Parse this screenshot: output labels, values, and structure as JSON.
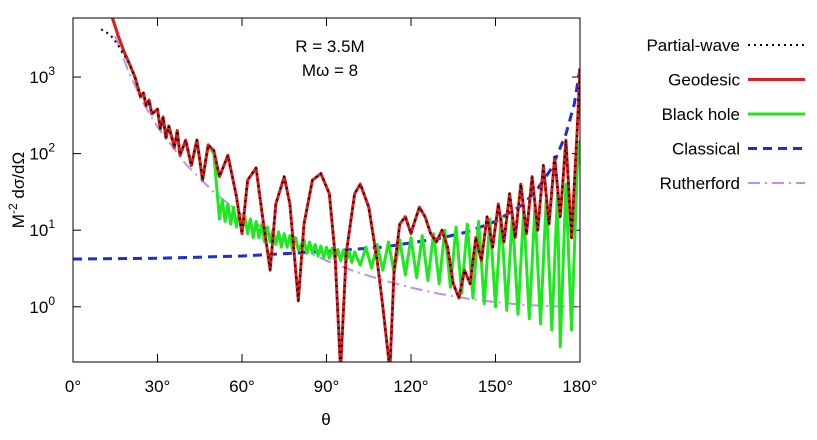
{
  "chart_data": {
    "type": "line",
    "annotations": [
      "R = 3.5M",
      "Mω = 8"
    ],
    "xlabel": "θ",
    "ylabel": {
      "text": "M",
      "sup": "-2",
      "rest": " dσ/dΩ"
    },
    "xlim": [
      0,
      180
    ],
    "ylim": [
      0.19,
      5900
    ],
    "yscale": "log",
    "xticks": [
      {
        "value": 0,
        "label": "0°"
      },
      {
        "value": 30,
        "label": "30°"
      },
      {
        "value": 60,
        "label": "60°"
      },
      {
        "value": 90,
        "label": "90°"
      },
      {
        "value": 120,
        "label": "120°"
      },
      {
        "value": 150,
        "label": "150°"
      },
      {
        "value": 180,
        "label": "180°"
      }
    ],
    "yticks": [
      {
        "value": 1,
        "label": "10",
        "sup": "0"
      },
      {
        "value": 10,
        "label": "10",
        "sup": "1"
      },
      {
        "value": 100,
        "label": "10",
        "sup": "2"
      },
      {
        "value": 1000,
        "label": "10",
        "sup": "3"
      }
    ],
    "legend": "outside right",
    "series": [
      {
        "name": "Partial-wave",
        "color": "#000000",
        "dash": "2,4",
        "width": 2,
        "x": [
          10,
          12,
          14,
          16,
          18,
          20,
          22,
          24,
          25,
          26,
          27,
          28,
          30,
          31,
          32,
          33,
          34,
          36,
          37,
          38,
          40,
          42,
          44,
          46,
          48,
          50,
          52,
          55,
          58,
          60,
          62,
          65,
          67,
          70,
          72,
          75,
          77,
          80,
          82,
          85,
          88,
          91,
          93,
          95,
          97,
          100,
          102,
          105,
          108,
          110,
          112.5,
          114,
          116,
          118,
          120,
          121,
          123,
          125,
          127,
          129,
          131,
          133,
          135,
          137,
          139,
          141,
          143,
          145,
          147,
          149,
          151,
          153,
          155,
          157,
          159,
          161,
          163,
          165,
          167,
          169,
          171,
          173,
          175,
          177,
          179,
          180
        ],
        "values": [
          4200,
          3800,
          3300,
          2600,
          2000,
          1500,
          1000,
          550,
          620,
          420,
          500,
          330,
          380,
          210,
          300,
          160,
          230,
          120,
          200,
          95,
          150,
          70,
          150,
          45,
          130,
          110,
          50,
          95,
          28,
          9,
          45,
          65,
          18,
          3,
          22,
          50,
          22,
          1.2,
          12,
          45,
          55,
          30,
          5,
          0.15,
          5,
          30,
          40,
          20,
          4,
          1,
          0.15,
          3,
          12,
          15,
          9,
          12,
          20,
          15,
          9,
          7,
          10,
          6,
          2,
          1.3,
          3,
          2,
          8,
          4,
          15,
          6,
          22,
          7,
          30,
          8,
          40,
          9,
          50,
          10,
          70,
          12,
          90,
          15,
          150,
          8,
          200,
          1300
        ]
      },
      {
        "name": "Geodesic",
        "color": "#e41a1c",
        "dash": "none",
        "width": 3,
        "x": [
          14,
          16,
          18,
          20,
          22,
          24,
          25,
          26,
          27,
          28,
          30,
          31,
          32,
          33,
          34,
          36,
          37,
          38,
          40,
          42,
          44,
          46,
          48,
          50,
          52,
          55,
          58,
          60,
          62,
          65,
          67,
          70,
          72,
          75,
          77,
          80,
          82,
          85,
          88,
          91,
          93,
          95,
          97,
          100,
          102,
          105,
          108,
          110,
          112.5,
          114,
          116,
          118,
          120,
          121,
          123,
          125,
          127,
          129,
          131,
          133,
          135,
          137,
          139,
          141,
          143,
          145,
          147,
          149,
          151,
          153,
          155,
          157,
          159,
          161,
          163,
          165,
          167,
          169,
          171,
          173,
          175,
          177,
          179,
          180
        ],
        "values": [
          5900,
          3500,
          2200,
          1500,
          1000,
          550,
          620,
          420,
          500,
          330,
          380,
          210,
          300,
          160,
          230,
          120,
          200,
          95,
          150,
          70,
          150,
          45,
          130,
          110,
          50,
          95,
          28,
          9,
          45,
          65,
          18,
          3,
          22,
          50,
          22,
          1.2,
          12,
          45,
          55,
          30,
          5,
          0.15,
          5,
          30,
          40,
          20,
          4,
          1,
          0.15,
          3,
          12,
          15,
          9,
          12,
          20,
          15,
          9,
          7,
          10,
          6,
          2,
          1.3,
          3,
          2,
          8,
          4,
          15,
          6,
          22,
          7,
          30,
          8,
          40,
          9,
          50,
          10,
          70,
          12,
          90,
          15,
          150,
          8,
          200,
          1300
        ]
      },
      {
        "name": "Black hole",
        "color": "#1ee81e",
        "dash": "none",
        "width": 3,
        "x": [
          14,
          16,
          18,
          20,
          22,
          24,
          25,
          26,
          27,
          28,
          30,
          31,
          32,
          33,
          34,
          36,
          37,
          38,
          40,
          42,
          44,
          46,
          48,
          50,
          52,
          53,
          54,
          55,
          56,
          57,
          58,
          59,
          60,
          61,
          62,
          63,
          64,
          65,
          66,
          67,
          68,
          69,
          70,
          71,
          72,
          73,
          74,
          75,
          76,
          77,
          78,
          79,
          80,
          82,
          83,
          84,
          85,
          86,
          87,
          88,
          89,
          90,
          91,
          92,
          93,
          94,
          95,
          96,
          97,
          98,
          99,
          100,
          102,
          104,
          106,
          108,
          110,
          112,
          114,
          116,
          118,
          120,
          122,
          124,
          126,
          128,
          130,
          132,
          134,
          136,
          138,
          140,
          142,
          144,
          146,
          148,
          150,
          152,
          154,
          156,
          158,
          160,
          162,
          164,
          166,
          168,
          170,
          172,
          173,
          175,
          177,
          179,
          180
        ],
        "values": [
          5900,
          3500,
          2200,
          1500,
          1000,
          550,
          620,
          420,
          500,
          330,
          380,
          210,
          300,
          160,
          230,
          120,
          200,
          95,
          150,
          70,
          150,
          45,
          130,
          100,
          14,
          25,
          13,
          22,
          12,
          20,
          11,
          17,
          10,
          15,
          9,
          14,
          8,
          13,
          8,
          12,
          7,
          11,
          7,
          10,
          6.5,
          9.5,
          6,
          9,
          6,
          8.5,
          5.5,
          8,
          5.5,
          7.5,
          5,
          7,
          5,
          6.5,
          4.6,
          6.2,
          4.4,
          6,
          4.3,
          5.8,
          4.2,
          5.6,
          4,
          5.5,
          3.9,
          5.3,
          3.8,
          5.2,
          3.5,
          6,
          3.2,
          6.5,
          3,
          7,
          2.8,
          7.5,
          2.6,
          8,
          2.4,
          8.5,
          2.2,
          9,
          2,
          10,
          1.8,
          11,
          1.5,
          12,
          1.3,
          13,
          1.1,
          14,
          1,
          15,
          0.9,
          16,
          0.8,
          18,
          0.7,
          20,
          0.6,
          25,
          0.5,
          30,
          0.3,
          40,
          0.5,
          60,
          150
        ]
      },
      {
        "name": "Classical",
        "color": "#1a2ee0",
        "dash": "9,6",
        "width": 3,
        "x": [
          0,
          30,
          60,
          90,
          110,
          130,
          140,
          150,
          160,
          165,
          170,
          175,
          178,
          180
        ],
        "values": [
          4.2,
          4.3,
          4.6,
          5.3,
          6,
          7.8,
          9.5,
          13,
          22,
          35,
          65,
          180,
          450,
          1300
        ]
      },
      {
        "name": "Rutherford",
        "color": "#c28cf0",
        "dash": "12,5,2,5",
        "width": 2,
        "x": [
          15,
          20,
          25,
          30,
          40,
          50,
          60,
          70,
          80,
          90,
          100,
          110,
          120,
          130,
          140,
          150,
          160,
          170,
          180
        ],
        "values": [
          3450,
          1100,
          456,
          223,
          73,
          31.3,
          16,
          9.24,
          5.86,
          4,
          2.9,
          2.22,
          1.78,
          1.48,
          1.28,
          1.15,
          1.06,
          1.015,
          1
        ]
      }
    ]
  }
}
